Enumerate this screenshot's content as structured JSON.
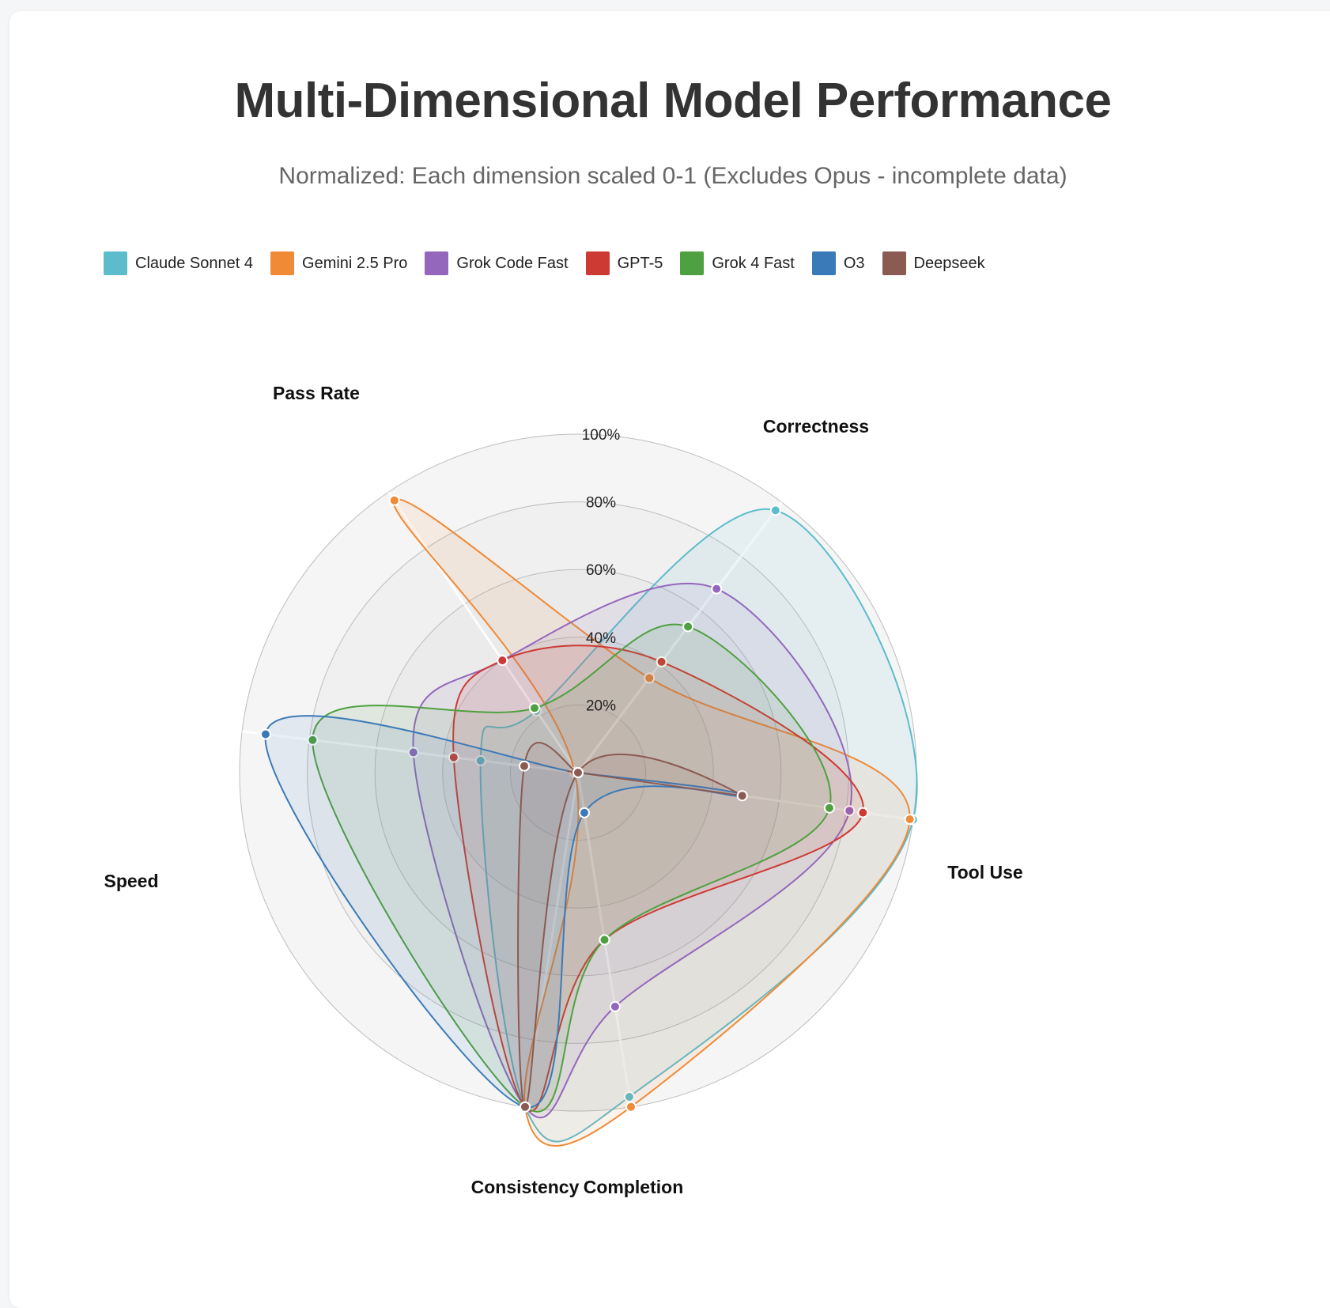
{
  "chart_data": {
    "type": "radar",
    "title": "Multi-Dimensional Model Performance",
    "subtitle": "Normalized: Each dimension scaled 0-1 (Excludes Opus - incomplete data)",
    "axes": [
      "Pass Rate",
      "Correctness",
      "Tool Use",
      "Completion",
      "Consistency",
      "Speed"
    ],
    "ticks": [
      "20%",
      "40%",
      "60%",
      "80%",
      "100%"
    ],
    "range": [
      0,
      1
    ],
    "series": [
      {
        "name": "Claude Sonnet 4",
        "color": "#5bbccc",
        "values": [
          0.22,
          0.97,
          1.0,
          0.97,
          1.0,
          0.29
        ]
      },
      {
        "name": "Gemini 2.5 Pro",
        "color": "#f08a36",
        "values": [
          0.97,
          0.35,
          0.99,
          1.0,
          1.0,
          0.01
        ]
      },
      {
        "name": "Grok Code Fast",
        "color": "#9467bd",
        "values": [
          0.4,
          0.68,
          0.81,
          0.7,
          1.0,
          0.49
        ]
      },
      {
        "name": "GPT-5",
        "color": "#cd3a34",
        "values": [
          0.4,
          0.41,
          0.85,
          0.5,
          1.0,
          0.37
        ]
      },
      {
        "name": "Grok 4 Fast",
        "color": "#4fa040",
        "values": [
          0.23,
          0.54,
          0.75,
          0.5,
          1.0,
          0.79
        ]
      },
      {
        "name": "O3",
        "color": "#3b7ab8",
        "values": [
          0.0,
          0.0,
          0.49,
          0.12,
          1.0,
          0.93
        ]
      },
      {
        "name": "Deepseek",
        "color": "#8b5a52",
        "values": [
          0.0,
          0.0,
          0.49,
          0.0,
          1.0,
          0.16
        ]
      }
    ]
  }
}
